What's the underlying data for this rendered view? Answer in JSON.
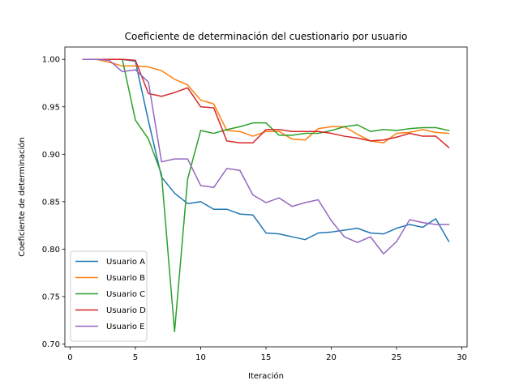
{
  "chart_data": {
    "type": "line",
    "title": "Coeficiente de determinación del cuestionario por usuario",
    "xlabel": "Iteración",
    "ylabel": "Coeficiente de determinación",
    "xlim": [
      -0.4,
      30.4
    ],
    "ylim": [
      0.697,
      1.013
    ],
    "xticks": [
      0,
      5,
      10,
      15,
      20,
      25,
      30
    ],
    "xtick_labels": [
      "0",
      "5",
      "10",
      "15",
      "20",
      "25",
      "30"
    ],
    "yticks": [
      0.7,
      0.75,
      0.8,
      0.85,
      0.9,
      0.95,
      1.0
    ],
    "ytick_labels": [
      "0.70",
      "0.75",
      "0.80",
      "0.85",
      "0.90",
      "0.95",
      "1.00"
    ],
    "grid": false,
    "legend_position": "lower-left",
    "x": [
      1,
      2,
      3,
      4,
      5,
      6,
      7,
      8,
      9,
      10,
      11,
      12,
      13,
      14,
      15,
      16,
      17,
      18,
      19,
      20,
      21,
      22,
      23,
      24,
      25,
      26,
      27,
      28,
      29
    ],
    "series": [
      {
        "name": "Usuario A",
        "color": "#1f77b4",
        "values": [
          1.0,
          1.0,
          1.0,
          1.0,
          0.998,
          0.935,
          0.876,
          0.859,
          0.848,
          0.85,
          0.842,
          0.842,
          0.837,
          0.836,
          0.817,
          0.816,
          0.813,
          0.81,
          0.817,
          0.818,
          0.82,
          0.822,
          0.817,
          0.816,
          0.822,
          0.826,
          0.823,
          0.832,
          0.808
        ]
      },
      {
        "name": "Usuario B",
        "color": "#ff7f0e",
        "values": [
          1.0,
          1.0,
          0.997,
          0.993,
          0.993,
          0.992,
          0.988,
          0.979,
          0.973,
          0.957,
          0.953,
          0.925,
          0.924,
          0.919,
          0.924,
          0.924,
          0.916,
          0.915,
          0.927,
          0.929,
          0.929,
          0.921,
          0.914,
          0.912,
          0.922,
          0.923,
          0.926,
          0.923,
          0.922
        ]
      },
      {
        "name": "Usuario C",
        "color": "#2ca02c",
        "values": [
          1.0,
          1.0,
          1.0,
          1.0,
          0.936,
          0.916,
          0.879,
          0.713,
          0.874,
          0.925,
          0.922,
          0.926,
          0.929,
          0.933,
          0.933,
          0.92,
          0.92,
          0.922,
          0.922,
          0.925,
          0.929,
          0.931,
          0.924,
          0.926,
          0.925,
          0.927,
          0.928,
          0.928,
          0.925
        ]
      },
      {
        "name": "Usuario D",
        "color": "#d62728",
        "values": [
          1.0,
          1.0,
          1.0,
          1.0,
          0.999,
          0.964,
          0.961,
          0.965,
          0.97,
          0.95,
          0.949,
          0.914,
          0.912,
          0.912,
          0.926,
          0.926,
          0.924,
          0.924,
          0.924,
          0.922,
          0.919,
          0.917,
          0.914,
          0.915,
          0.918,
          0.922,
          0.919,
          0.919,
          0.907
        ]
      },
      {
        "name": "Usuario E",
        "color": "#9467bd",
        "values": [
          1.0,
          1.0,
          0.999,
          0.987,
          0.989,
          0.976,
          0.892,
          0.895,
          0.895,
          0.867,
          0.865,
          0.885,
          0.883,
          0.857,
          0.849,
          0.854,
          0.845,
          0.849,
          0.852,
          0.83,
          0.813,
          0.807,
          0.813,
          0.795,
          0.808,
          0.831,
          0.828,
          0.826,
          0.826
        ]
      }
    ]
  }
}
